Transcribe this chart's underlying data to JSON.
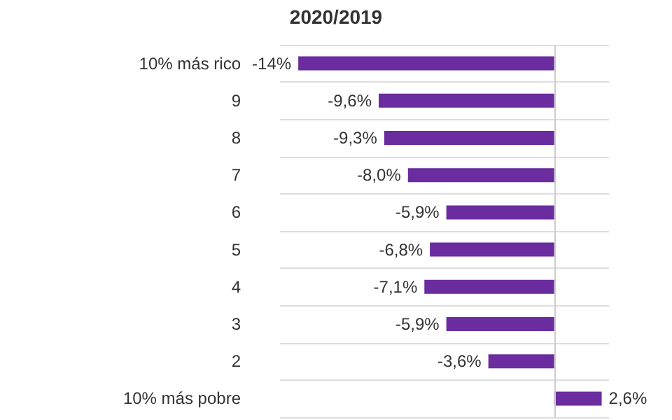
{
  "chart_data": {
    "type": "bar",
    "orientation": "horizontal",
    "title": "2020/2019",
    "categories": [
      "10% más rico",
      "9",
      "8",
      "7",
      "6",
      "5",
      "4",
      "3",
      "2",
      "10% más pobre"
    ],
    "values": [
      -14,
      -9.6,
      -9.3,
      -8.0,
      -5.9,
      -6.8,
      -7.1,
      -5.9,
      -3.6,
      2.6
    ],
    "value_labels": [
      "-14%",
      "-9,6%",
      "-9,3%",
      "-8,0%",
      "-5,9%",
      "-6,8%",
      "-7,1%",
      "-5,9%",
      "-3,6%",
      "2,6%"
    ],
    "color": "#6a2c9e",
    "grid": "y"
  }
}
